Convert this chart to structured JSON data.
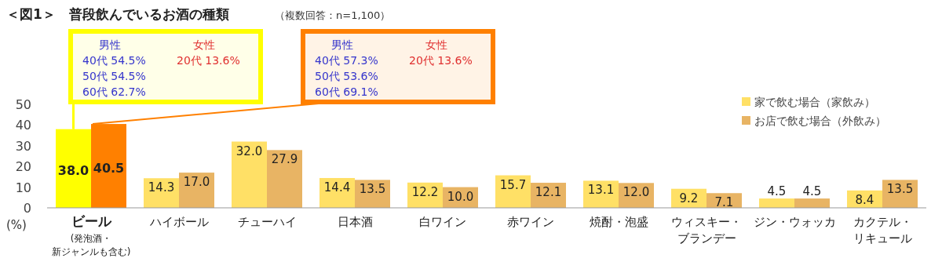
{
  "chart_data": {
    "type": "bar",
    "title": "＜図1＞　普段飲んでいるお酒の種類",
    "subtitle": "（複数回答：n=1,100）",
    "ylabel": "(%)",
    "categories": [
      "**ビール**(発泡酒・新ジャンルも含む)",
      "ハイボール",
      "チューハイ",
      "日本酒",
      "白ワイン",
      "赤ワイン",
      "焼酎・泡盛",
      "ウィスキー・ブランデー",
      "ジン・ウォッカ",
      "カクテル・リキュール"
    ],
    "series": [
      {
        "name": "家で飲む場合（家飲み）",
        "color": "#ffe066",
        "colors": [
          "#ffff00",
          "#ffe066",
          "#ffe066",
          "#ffe066",
          "#ffe066",
          "#ffe066",
          "#ffe066",
          "#ffe066",
          "#ffe066",
          "#ffe066"
        ],
        "values": [
          38.0,
          14.3,
          32.0,
          14.4,
          12.2,
          15.7,
          13.1,
          9.2,
          4.5,
          8.4
        ],
        "value_labels": [
          "38.0",
          "14.3",
          "32.0",
          "14.4",
          "12.2",
          "15.7",
          "13.1",
          "9.2",
          "4.5",
          "8.4"
        ]
      },
      {
        "name": "お店で飲む場合（外飲み）",
        "color": "#e8b464",
        "colors": [
          "#ff8000",
          "#e8b464",
          "#e8b464",
          "#e8b464",
          "#e8b464",
          "#e8b464",
          "#e8b464",
          "#e8b464",
          "#e8b464",
          "#e8b464"
        ],
        "values": [
          40.5,
          17.0,
          27.9,
          13.5,
          10.0,
          12.1,
          12.0,
          7.1,
          4.5,
          13.5
        ],
        "value_labels": [
          "40.5",
          "17.0",
          "27.9",
          "13.5",
          "10.0",
          "12.1",
          "12.0",
          "7.1",
          "4.5",
          "13.5"
        ]
      }
    ],
    "ylim": [
      0,
      50
    ],
    "yticks": [
      0,
      10,
      20,
      30,
      40,
      50
    ],
    "grid": false,
    "legend": "top right",
    "annotations": [
      "男性",
      "40代 54.5%",
      "50代 54.5%",
      {
        "text": "60代 62.7%",
        "x": "**ビール**(発泡酒・新ジャンルも含む)",
        "y": 38.0
      },
      "女性",
      "20代 13.6%",
      "男性",
      "40代 57.3%",
      "50代 53.6%",
      {
        "text": "60代 69.1%",
        "x": "**ビール**(発泡酒・新ジャンルも含む)",
        "y": 40.5
      },
      "女性",
      "20代 13.6%"
    ]
  }
}
